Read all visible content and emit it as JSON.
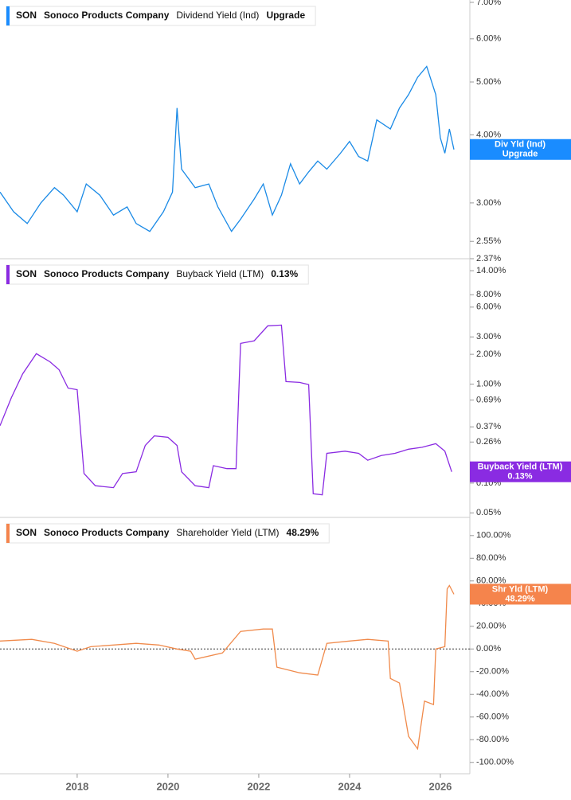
{
  "chart_data": [
    {
      "type": "line",
      "ticker": "SON",
      "company": "Sonoco Products Company",
      "title": "Dividend Yield (Ind)",
      "header_value": "Upgrade",
      "log_scale": true,
      "xlim": [
        2016.3,
        2026.65
      ],
      "ylim": [
        2.37,
        7.07
      ],
      "yticks": [
        {
          "value": 7,
          "label": "7.00%"
        },
        {
          "value": 6,
          "label": "6.00%"
        },
        {
          "value": 5,
          "label": "5.00%"
        },
        {
          "value": 4,
          "label": "4.00%"
        },
        {
          "value": 3,
          "label": "3.00%"
        },
        {
          "value": 2.55,
          "label": "2.55%"
        },
        {
          "value": 2.37,
          "label": "2.37%"
        }
      ],
      "x": [
        2016.3,
        2016.6,
        2016.9,
        2017.2,
        2017.5,
        2017.7,
        2018.0,
        2018.2,
        2018.5,
        2018.8,
        2019.1,
        2019.3,
        2019.6,
        2019.9,
        2020.1,
        2020.2,
        2020.3,
        2020.6,
        2020.9,
        2021.1,
        2021.4,
        2021.6,
        2021.9,
        2022.1,
        2022.3,
        2022.5,
        2022.7,
        2022.9,
        2023.1,
        2023.3,
        2023.5,
        2023.8,
        2024.0,
        2024.2,
        2024.4,
        2024.6,
        2024.9,
        2025.1,
        2025.3,
        2025.5,
        2025.7,
        2025.9,
        2026.0,
        2026.1,
        2026.2,
        2026.3
      ],
      "series": [
        {
          "name": "Div Yld (Ind)",
          "color": "#1a8ae6",
          "badge_color": "#1a8cff",
          "values": [
            3.14,
            2.89,
            2.75,
            3.0,
            3.2,
            3.1,
            2.89,
            3.25,
            3.1,
            2.85,
            2.95,
            2.75,
            2.66,
            2.89,
            3.14,
            4.48,
            3.46,
            3.2,
            3.25,
            2.95,
            2.66,
            2.8,
            3.05,
            3.25,
            2.85,
            3.1,
            3.54,
            3.25,
            3.42,
            3.58,
            3.46,
            3.7,
            3.89,
            3.65,
            3.58,
            4.26,
            4.1,
            4.48,
            4.74,
            5.1,
            5.34,
            4.74,
            3.95,
            3.7,
            4.1,
            3.76
          ]
        }
      ]
    },
    {
      "type": "line",
      "ticker": "SON",
      "company": "Sonoco Products Company",
      "title": "Buyback Yield (LTM)",
      "header_value": "0.13%",
      "log_scale": true,
      "xlim": [
        2016.3,
        2026.65
      ],
      "ylim": [
        0.045,
        18.5
      ],
      "yticks": [
        {
          "value": 14,
          "label": "14.00%"
        },
        {
          "value": 8,
          "label": "8.00%"
        },
        {
          "value": 6,
          "label": "6.00%"
        },
        {
          "value": 3,
          "label": "3.00%"
        },
        {
          "value": 2,
          "label": "2.00%"
        },
        {
          "value": 1,
          "label": "1.00%"
        },
        {
          "value": 0.69,
          "label": "0.69%"
        },
        {
          "value": 0.37,
          "label": "0.37%"
        },
        {
          "value": 0.26,
          "label": "0.26%"
        },
        {
          "value": 0.1,
          "label": "0.10%"
        },
        {
          "value": 0.05,
          "label": "0.05%"
        }
      ],
      "x": [
        2016.3,
        2016.55,
        2016.8,
        2017.1,
        2017.4,
        2017.6,
        2017.8,
        2018.0,
        2018.15,
        2018.4,
        2018.8,
        2019.0,
        2019.3,
        2019.5,
        2019.7,
        2020.0,
        2020.2,
        2020.3,
        2020.6,
        2020.9,
        2021.0,
        2021.3,
        2021.5,
        2021.6,
        2021.9,
        2022.2,
        2022.5,
        2022.6,
        2022.9,
        2023.1,
        2023.2,
        2023.4,
        2023.5,
        2023.9,
        2024.2,
        2024.4,
        2024.7,
        2025.0,
        2025.3,
        2025.6,
        2025.9,
        2026.1,
        2026.25
      ],
      "series": [
        {
          "name": "Buyback Yield (LTM)",
          "color": "#8a2be2",
          "badge_color": "#8a2be2",
          "values": [
            0.38,
            0.73,
            1.27,
            2.03,
            1.68,
            1.4,
            0.91,
            0.88,
            0.125,
            0.094,
            0.09,
            0.125,
            0.13,
            0.24,
            0.3,
            0.29,
            0.24,
            0.13,
            0.094,
            0.09,
            0.15,
            0.14,
            0.14,
            2.58,
            2.74,
            3.88,
            3.95,
            1.06,
            1.04,
            0.99,
            0.078,
            0.076,
            0.2,
            0.21,
            0.2,
            0.17,
            0.19,
            0.2,
            0.22,
            0.23,
            0.25,
            0.21,
            0.13
          ]
        }
      ]
    },
    {
      "type": "line",
      "ticker": "SON",
      "company": "Sonoco Products Company",
      "title": "Shareholder Yield (LTM)",
      "header_value": "48.29%",
      "log_scale": false,
      "zero_line": true,
      "xlim": [
        2016.3,
        2026.65
      ],
      "ylim": [
        -110,
        116
      ],
      "yticks": [
        {
          "value": 100,
          "label": "100.00%"
        },
        {
          "value": 80,
          "label": "80.00%"
        },
        {
          "value": 60,
          "label": "60.00%"
        },
        {
          "value": 40,
          "label": "40.00%"
        },
        {
          "value": 20,
          "label": "20.00%"
        },
        {
          "value": 0,
          "label": "0.00%"
        },
        {
          "value": -20,
          "label": "-20.00%"
        },
        {
          "value": -40,
          "label": "-40.00%"
        },
        {
          "value": -60,
          "label": "-60.00%"
        },
        {
          "value": -80,
          "label": "-80.00%"
        },
        {
          "value": -100,
          "label": "-100.00%"
        }
      ],
      "xticks": [
        2018,
        2020,
        2022,
        2024,
        2026
      ],
      "x": [
        2016.3,
        2017.0,
        2017.5,
        2018.0,
        2018.3,
        2018.8,
        2019.3,
        2019.8,
        2020.2,
        2020.5,
        2020.6,
        2021.2,
        2021.6,
        2022.1,
        2022.3,
        2022.4,
        2022.9,
        2023.3,
        2023.5,
        2024.0,
        2024.4,
        2024.85,
        2024.9,
        2025.1,
        2025.3,
        2025.5,
        2025.65,
        2025.85,
        2025.9,
        2026.1,
        2026.15,
        2026.2,
        2026.3
      ],
      "series": [
        {
          "name": "Shr Yld (LTM)",
          "color": "#f08a4b",
          "badge_color": "#f5844c",
          "values": [
            7,
            8.5,
            5,
            -2,
            2,
            3.5,
            5,
            3.5,
            0,
            -2,
            -9,
            -3.5,
            15.5,
            17.6,
            17.6,
            -16,
            -21,
            -23,
            5,
            7,
            8.5,
            7,
            -26,
            -30,
            -77,
            -88,
            -46,
            -49,
            0,
            2,
            53,
            56,
            48.29
          ]
        }
      ]
    }
  ]
}
